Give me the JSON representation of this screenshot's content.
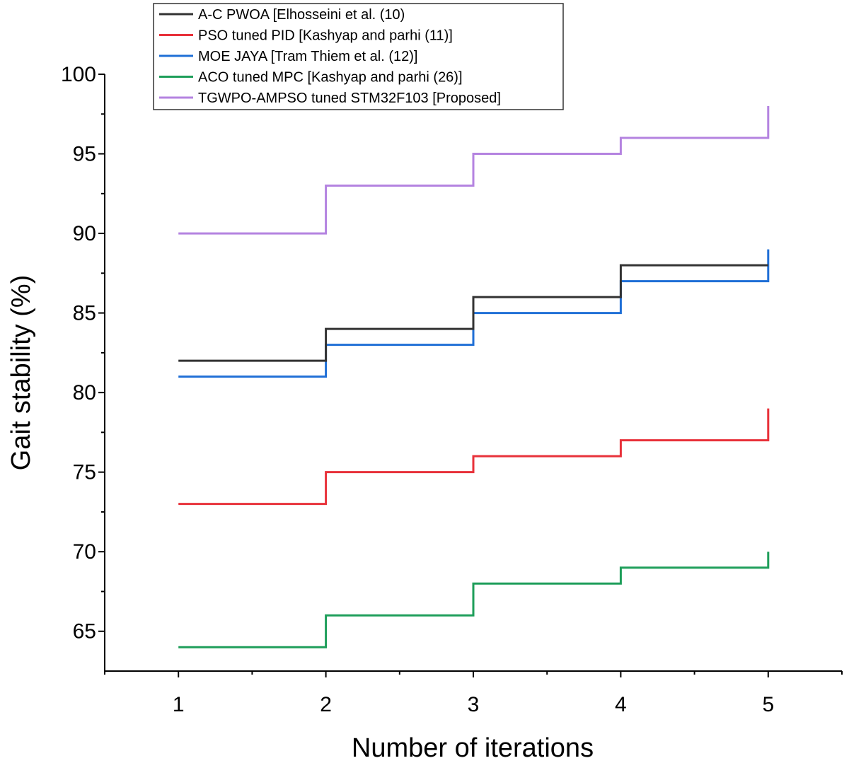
{
  "chart_data": {
    "type": "line",
    "step": "post",
    "title": "",
    "xlabel": "Number of iterations",
    "ylabel": "Gait stability (%)",
    "xlim": [
      0.5,
      5.5
    ],
    "ylim": [
      62.5,
      100
    ],
    "x": [
      1,
      2,
      3,
      4,
      5
    ],
    "xticks": [
      1,
      2,
      3,
      4,
      5
    ],
    "yticks": [
      65,
      70,
      75,
      80,
      85,
      90,
      95,
      100
    ],
    "grid": false,
    "legend_position": "top-left",
    "series": [
      {
        "name": "A-C PWOA [Elhosseini et al. (10)",
        "color": "#333333",
        "values": [
          82,
          84,
          86,
          88,
          88
        ]
      },
      {
        "name": "PSO tuned PID [Kashyap and parhi (11)]",
        "color": "#e8313a",
        "values": [
          73,
          75,
          76,
          77,
          79
        ]
      },
      {
        "name": "MOE JAYA [Tram Thiem et al. (12)]",
        "color": "#1f6fd6",
        "values": [
          81,
          83,
          85,
          87,
          89
        ]
      },
      {
        "name": "ACO tuned MPC [Kashyap and parhi (26)]",
        "color": "#1e9e5a",
        "values": [
          64,
          66,
          68,
          69,
          70
        ]
      },
      {
        "name": "TGWPO-AMPSO tuned STM32F103 [Proposed]",
        "color": "#b483e0",
        "values": [
          90,
          93,
          95,
          96,
          98
        ]
      }
    ]
  }
}
